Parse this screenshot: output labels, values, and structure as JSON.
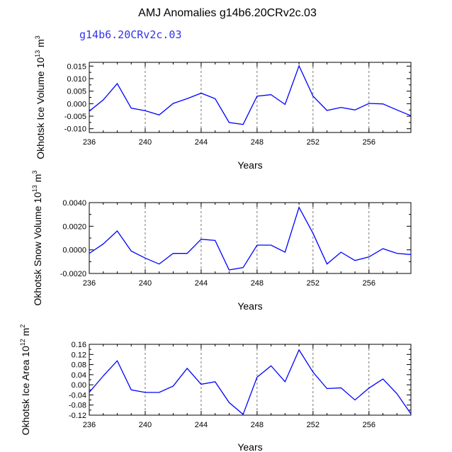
{
  "header": {
    "title": "AMJ Anomalies g14b6.20CRv2c.03",
    "subtitle": "g14b6.20CRv2c.03"
  },
  "chart_data": [
    {
      "type": "line",
      "xlabel": "Years",
      "ylabel": "Okhotsk Ice Volume 10",
      "ylabel_power": "13",
      "ylabel_unit": "m",
      "ylabel_unit_power": "3",
      "x": [
        236,
        237,
        238,
        239,
        240,
        241,
        242,
        243,
        244,
        245,
        246,
        247,
        248,
        249,
        250,
        251,
        252,
        253,
        254,
        255,
        256,
        257,
        258,
        259
      ],
      "values": [
        -0.003,
        0.0015,
        0.008,
        -0.0018,
        -0.0028,
        -0.0045,
        0.0001,
        0.002,
        0.0042,
        0.002,
        -0.0075,
        -0.0083,
        0.003,
        0.0036,
        -0.0003,
        0.0151,
        0.003,
        -0.0027,
        -0.0015,
        -0.0025,
        0.0001,
        -0.0001,
        -0.0025,
        -0.0048
      ],
      "xlim": [
        236,
        259
      ],
      "ylim": [
        -0.0115,
        0.0165
      ],
      "xticks": [
        "236",
        "240",
        "244",
        "248",
        "252",
        "256"
      ],
      "xtick_values": [
        236,
        240,
        244,
        248,
        252,
        256
      ],
      "yticks": [
        "0.015",
        "0.010",
        "0.005",
        "0.000",
        "-0.005",
        "-0.010"
      ],
      "ytick_values": [
        0.015,
        0.01,
        0.005,
        0,
        -0.005,
        -0.01
      ],
      "grid_x": [
        240,
        244,
        248,
        252,
        256
      ]
    },
    {
      "type": "line",
      "xlabel": "Years",
      "ylabel": "Okhotsk Snow Volume 10",
      "ylabel_power": "13",
      "ylabel_unit": "m",
      "ylabel_unit_power": "3",
      "x": [
        236,
        237,
        238,
        239,
        240,
        241,
        242,
        243,
        244,
        245,
        246,
        247,
        248,
        249,
        250,
        251,
        252,
        253,
        254,
        255,
        256,
        257,
        258,
        259
      ],
      "values": [
        -0.0003,
        0.0005,
        0.0016,
        -0.0001,
        -0.0007,
        -0.0012,
        -0.0003,
        -0.0003,
        0.0009,
        0.0008,
        -0.0017,
        -0.0015,
        0.0004,
        0.0004,
        -0.0002,
        0.0036,
        0.0014,
        -0.0012,
        -0.0002,
        -0.0009,
        -0.0006,
        0.0001,
        -0.0003,
        -0.0004
      ],
      "xlim": [
        236,
        259
      ],
      "ylim": [
        -0.002,
        0.004
      ],
      "xticks": [
        "236",
        "240",
        "244",
        "248",
        "252",
        "256"
      ],
      "xtick_values": [
        236,
        240,
        244,
        248,
        252,
        256
      ],
      "yticks": [
        "0.0040",
        "0.0020",
        "0.0000",
        "-0.0020"
      ],
      "ytick_values": [
        0.004,
        0.002,
        0,
        -0.002
      ],
      "grid_x": [
        240,
        244,
        248,
        252,
        256
      ]
    },
    {
      "type": "line",
      "xlabel": "Years",
      "ylabel": "Okhotsk Ice Area 10",
      "ylabel_power": "12",
      "ylabel_unit": "m",
      "ylabel_unit_power": "2",
      "x": [
        236,
        237,
        238,
        239,
        240,
        241,
        242,
        243,
        244,
        245,
        246,
        247,
        248,
        249,
        250,
        251,
        252,
        253,
        254,
        255,
        256,
        257,
        258,
        259
      ],
      "values": [
        -0.03,
        0.035,
        0.095,
        -0.02,
        -0.03,
        -0.03,
        -0.005,
        0.065,
        0.002,
        0.012,
        -0.07,
        -0.117,
        0.03,
        0.075,
        0.012,
        0.138,
        0.05,
        -0.015,
        -0.012,
        -0.06,
        -0.013,
        0.023,
        -0.035,
        -0.115
      ],
      "xlim": [
        236,
        259
      ],
      "ylim": [
        -0.12,
        0.16
      ],
      "xticks": [
        "236",
        "240",
        "244",
        "248",
        "252",
        "256"
      ],
      "xtick_values": [
        236,
        240,
        244,
        248,
        252,
        256
      ],
      "yticks": [
        "0.16",
        "0.12",
        "0.08",
        "0.04",
        "0.00",
        "-0.04",
        "-0.08",
        "-0.12"
      ],
      "ytick_values": [
        0.16,
        0.12,
        0.08,
        0.04,
        0,
        -0.04,
        -0.08,
        -0.12
      ],
      "grid_x": [
        240,
        244,
        248,
        252,
        256
      ]
    }
  ]
}
